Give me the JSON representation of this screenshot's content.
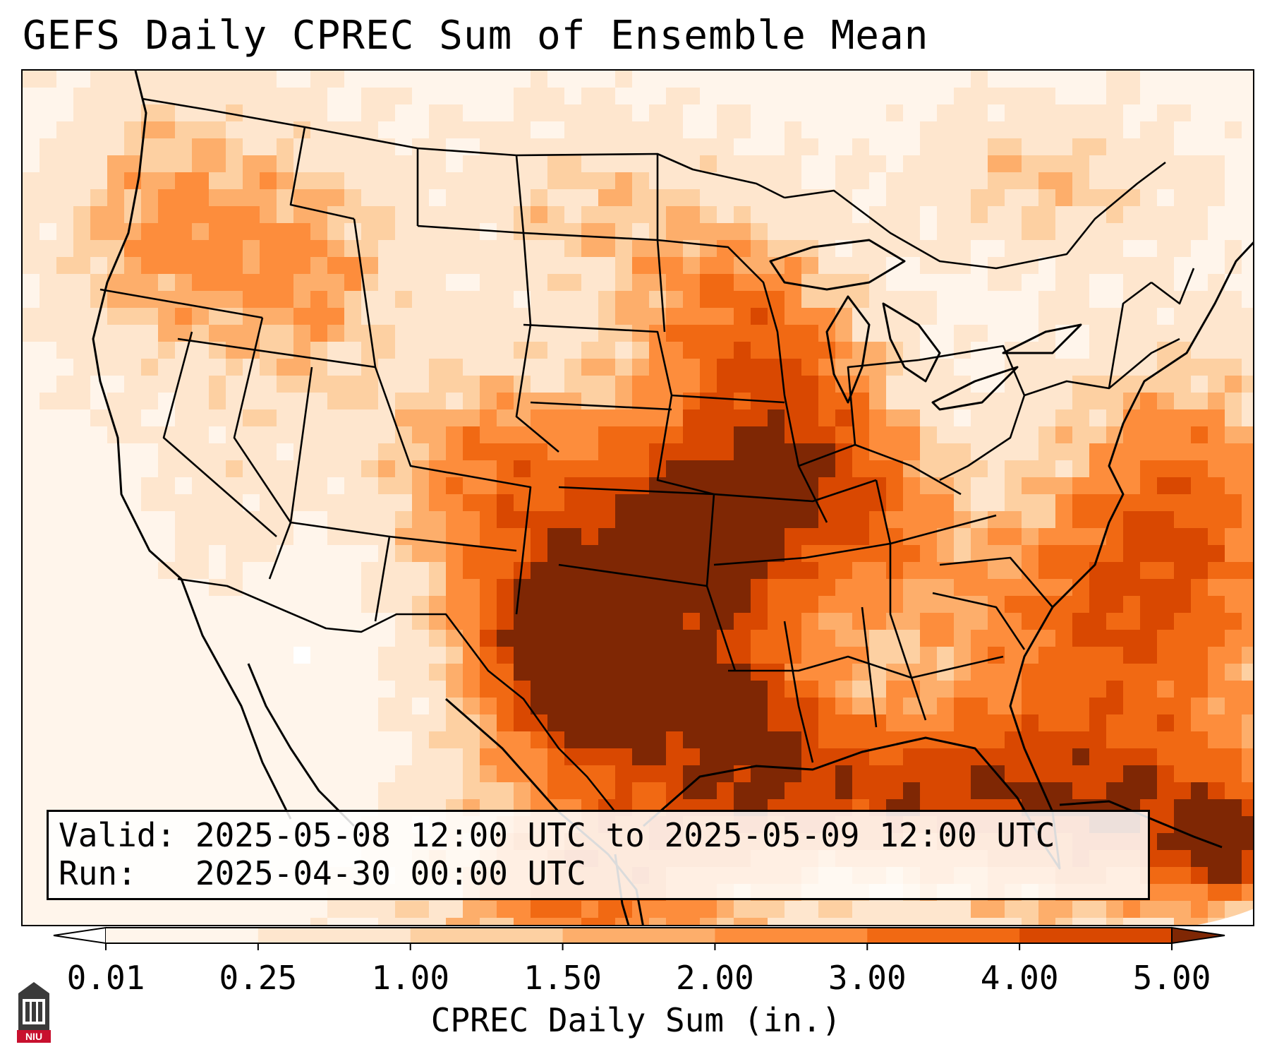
{
  "title": "GEFS Daily CPREC Sum of Ensemble Mean",
  "info": {
    "valid_label": "Valid:",
    "valid_text": "2025-05-08 12:00 UTC to 2025-05-09 12:00 UTC",
    "run_label": "Run:",
    "run_text": "2025-04-30 00:00 UTC"
  },
  "colorbar": {
    "label": "CPREC Daily Sum (in.)",
    "ticks": [
      "0.01",
      "0.25",
      "1.00",
      "1.50",
      "2.00",
      "3.00",
      "4.00",
      "5.00"
    ],
    "colors": [
      "#fff5eb",
      "#fee6ce",
      "#fdd0a2",
      "#fdae6b",
      "#fd8d3c",
      "#f16913",
      "#d94801",
      "#8c2d04"
    ],
    "under_color": "#ffffff",
    "over_color": "#7f2704"
  },
  "logo": {
    "text": "NIU",
    "colors": {
      "tower": "#3a3a3a",
      "band": "#c8102e"
    }
  },
  "map": {
    "projection": "conus",
    "colormap": "Oranges"
  }
}
